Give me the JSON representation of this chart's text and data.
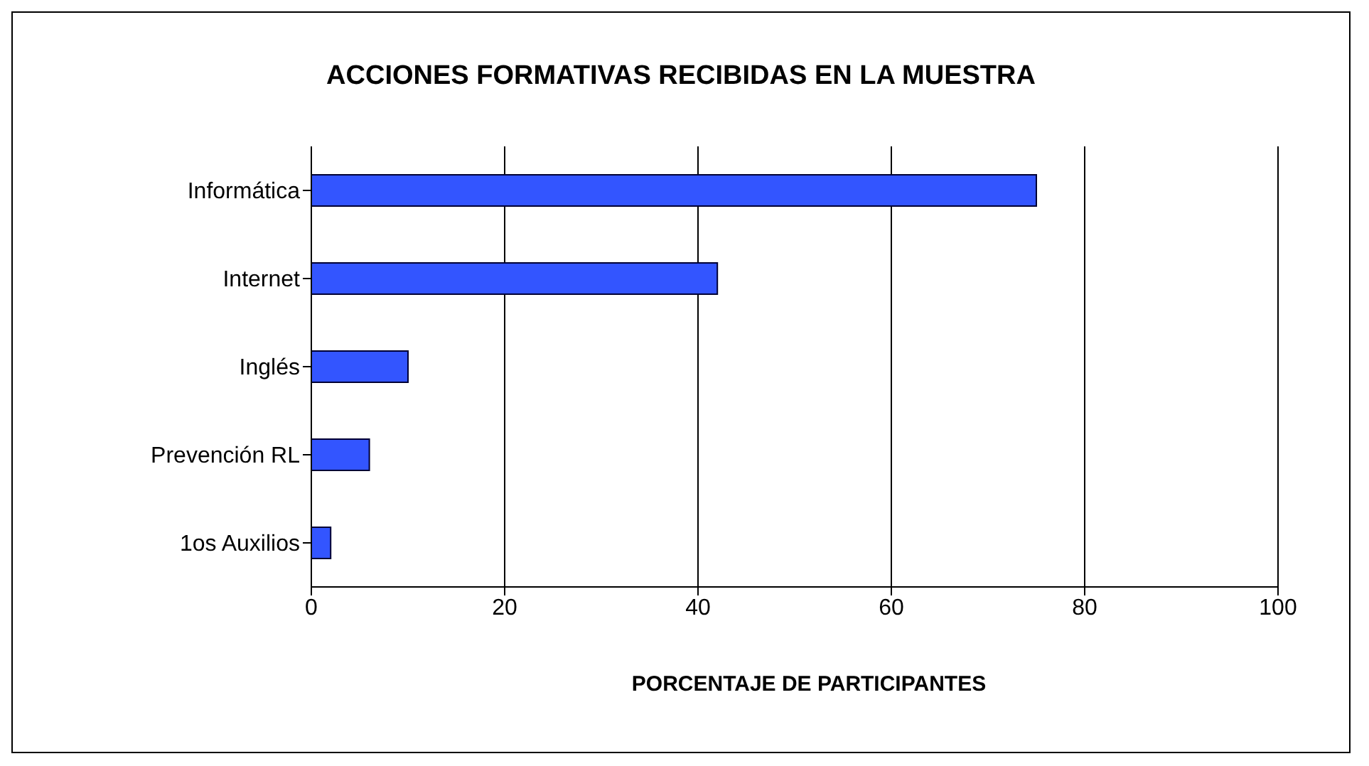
{
  "chart_data": {
    "type": "bar",
    "orientation": "horizontal",
    "title": "ACCIONES FORMATIVAS RECIBIDAS EN LA MUESTRA",
    "xlabel": "PORCENTAJE DE PARTICIPANTES",
    "categories": [
      "Informática",
      "Internet",
      "Inglés",
      "Prevención RL",
      "1os Auxilios"
    ],
    "values": [
      75,
      42,
      10,
      6,
      2
    ],
    "color": "#3355ff",
    "xlim": [
      0,
      100
    ],
    "xticks": [
      0,
      20,
      40,
      60,
      80,
      100
    ],
    "grid": "x"
  }
}
